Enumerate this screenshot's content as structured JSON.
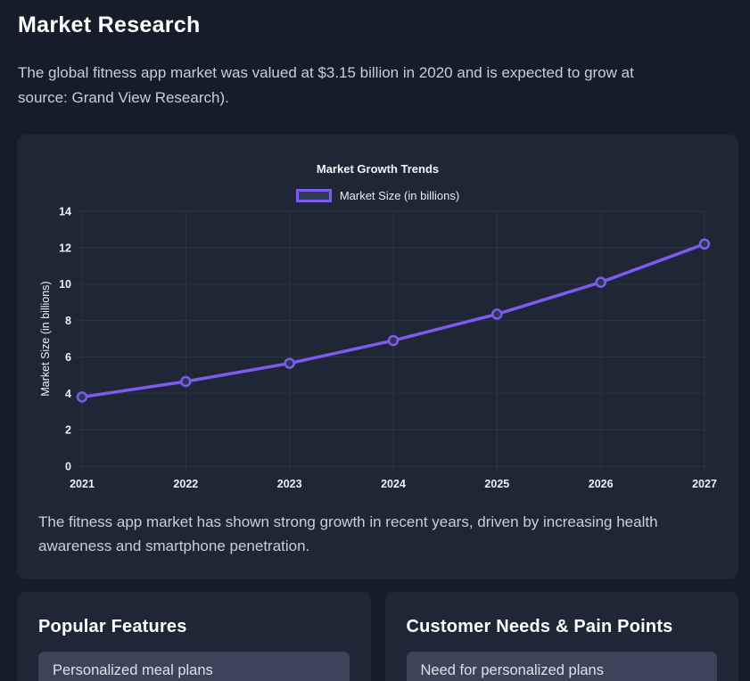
{
  "page": {
    "title": "Market Research",
    "intro_line1": "The global fitness app market was valued at $3.15 billion in 2020 and is expected to grow at",
    "intro_line2": "source: Grand View Research)."
  },
  "chart_card": {
    "caption": "The fitness app market has shown strong growth in recent years, driven by increasing health awareness and smartphone penetration."
  },
  "chart_data": {
    "type": "line",
    "title": "Market Growth Trends",
    "legend": [
      "Market Size (in billions)"
    ],
    "legend_position": "top",
    "categories": [
      "2021",
      "2022",
      "2023",
      "2024",
      "2025",
      "2026",
      "2027"
    ],
    "series": [
      {
        "name": "Market Size (in billions)",
        "values": [
          3.8,
          4.65,
          5.65,
          6.9,
          8.35,
          10.1,
          12.2
        ]
      }
    ],
    "xlabel": "",
    "ylabel": "Market Size (in billions)",
    "ylim": [
      0,
      14
    ],
    "ytick_step": 2,
    "grid": true,
    "line_color": "#7e5bef",
    "point_fill": "#2b3650",
    "grid_color": "#2c3444",
    "tick_color": "#eef1f6"
  },
  "features_card": {
    "title": "Popular Features",
    "items": [
      "Personalized meal plans"
    ]
  },
  "needs_card": {
    "title": "Customer Needs & Pain Points",
    "items": [
      "Need for personalized plans"
    ]
  },
  "colors": {
    "page_bg": "#161c29",
    "card_bg": "#1f2737",
    "list_item_bg": "#3b4458",
    "accent_purple": "#7e5bef",
    "text_primary": "#ffffff",
    "text_secondary": "#c7cfda"
  }
}
